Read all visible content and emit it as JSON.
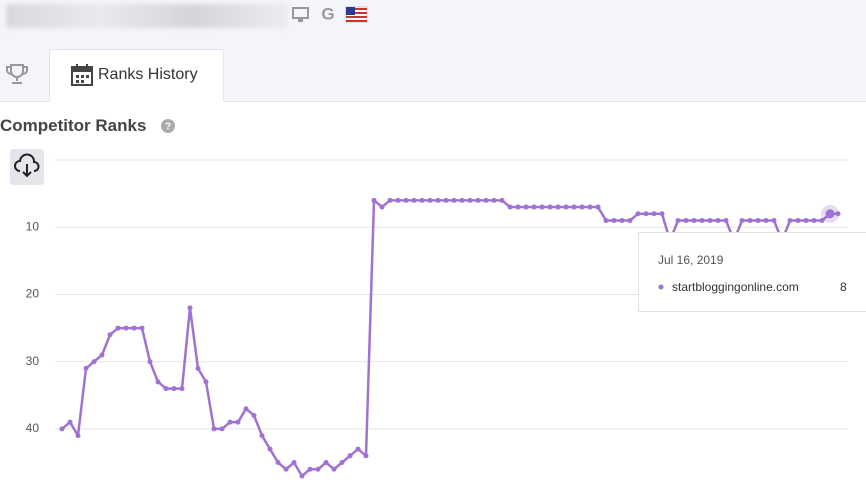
{
  "tabs": [
    "Ranks History"
  ],
  "section_title": "Competitor Ranks",
  "tooltip": {
    "date": "Jul 16, 2019"
  },
  "chart_data": {
    "type": "line",
    "series": [
      {
        "name": "startbloggingonline.com",
        "color": "#9f72d4",
        "values": [
          40,
          39,
          41,
          31,
          30,
          29,
          26,
          25,
          25,
          25,
          25,
          30,
          33,
          34,
          34,
          34,
          22,
          31,
          33,
          40,
          40,
          39,
          39,
          37,
          38,
          41,
          43,
          45,
          46,
          45,
          47,
          46,
          46,
          45,
          46,
          45,
          44,
          43,
          44,
          6,
          7,
          6,
          6,
          6,
          6,
          6,
          6,
          6,
          6,
          6,
          6,
          6,
          6,
          6,
          6,
          6,
          7,
          7,
          7,
          7,
          7,
          7,
          7,
          7,
          7,
          7,
          7,
          7,
          9,
          9,
          9,
          9,
          8,
          8,
          8,
          8,
          12,
          9,
          9,
          9,
          9,
          9,
          9,
          9,
          12,
          9,
          9,
          9,
          9,
          9,
          12,
          9,
          9,
          9,
          9,
          9,
          8,
          8
        ]
      }
    ],
    "ylim": [
      0,
      47.6
    ],
    "yticks": [
      10,
      20,
      30,
      40
    ],
    "grid": true
  }
}
